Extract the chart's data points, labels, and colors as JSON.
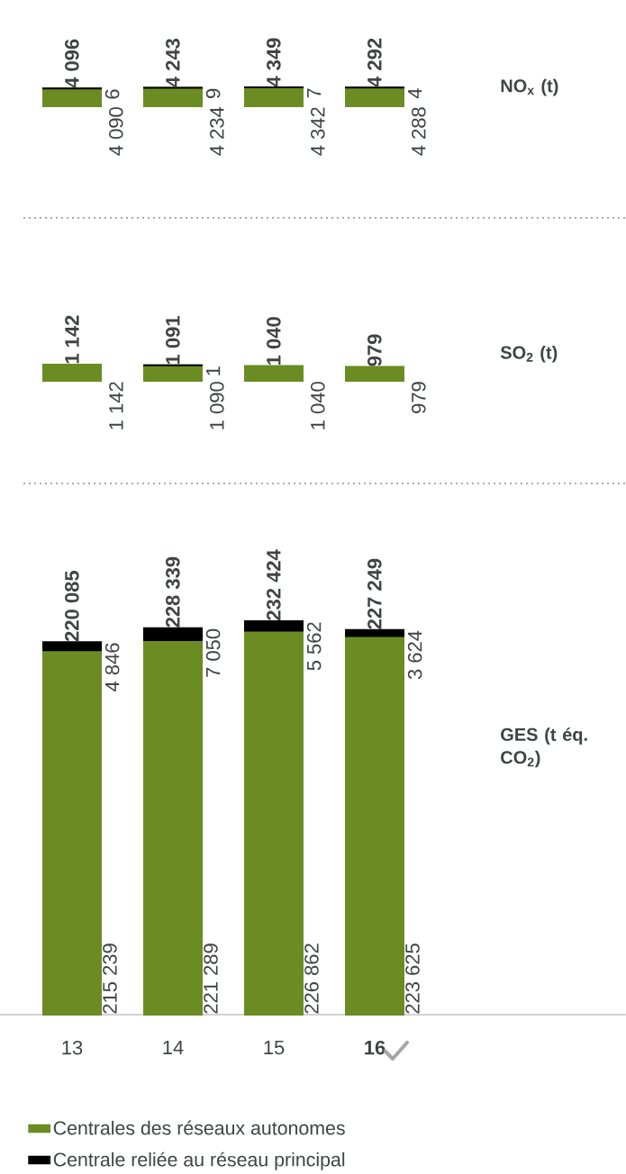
{
  "chart_data": [
    {
      "type": "bar",
      "ylabel": "NO$_{x}$ (t)",
      "stacked": true,
      "tick_labels": false,
      "series": [
        {
          "color": "#6b8c23",
          "values": [
            4090,
            4234,
            4342,
            4288
          ],
          "value_labels": [
            "4 090",
            "4 234",
            "4 342",
            "4 288"
          ]
        },
        {
          "color": "#000000",
          "values": [
            6,
            9,
            7,
            4
          ],
          "value_labels": [
            "6",
            "9",
            "7",
            "4"
          ]
        }
      ],
      "totals": [
        "4 096",
        "4 243",
        "4 349",
        "4 292"
      ]
    },
    {
      "type": "bar",
      "ylabel": "SO$_{2}$ (t)",
      "stacked": true,
      "tick_labels": false,
      "series": [
        {
          "color": "#6b8c23",
          "values": [
            1142,
            1090,
            1040,
            979
          ],
          "value_labels": [
            "1 142",
            "1 090",
            "1 040",
            "979"
          ]
        },
        {
          "color": "#000000",
          "values": [
            null,
            1,
            null,
            null
          ],
          "value_labels": [
            null,
            "1",
            null,
            null
          ]
        }
      ],
      "totals": [
        "1 142",
        "1 091",
        "1 040",
        "979"
      ]
    },
    {
      "type": "bar",
      "ylabel": "GES (t éq. CO$_{2}$)",
      "categories": [
        "13",
        "14",
        "15",
        "**16**"
      ],
      "stacked": true,
      "tick_labels": "x",
      "legend": "bottom",
      "series": [
        {
          "name": "Centrales des réseaux autonomes",
          "color": "#6b8c23",
          "values": [
            215239,
            221289,
            226862,
            223625
          ],
          "value_labels": [
            "215 239",
            "221 289",
            "226 862",
            "223 625"
          ]
        },
        {
          "name": "Centrale reliée au réseau principal",
          "color": "#000000",
          "values": [
            4846,
            7050,
            5562,
            3624
          ],
          "value_labels": [
            "4 846",
            "7 050",
            "5 562",
            "3 624"
          ]
        }
      ],
      "totals": [
        "220 085",
        "228 339",
        "232 424",
        "227 249"
      ]
    }
  ]
}
